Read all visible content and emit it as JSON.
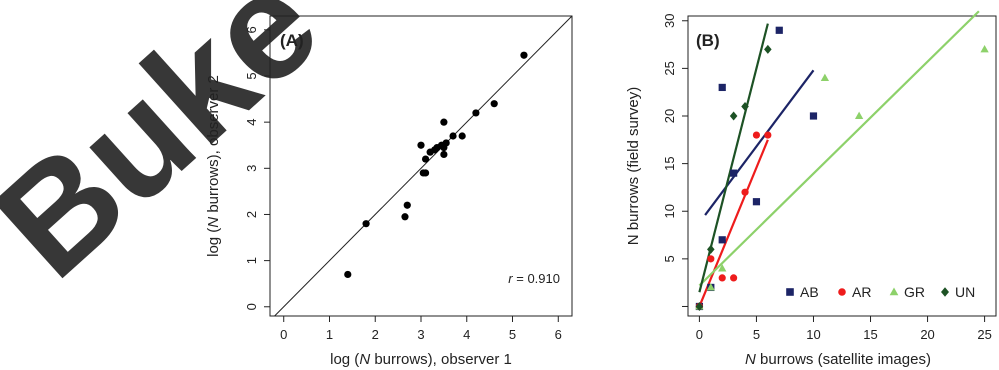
{
  "watermark": {
    "text": "Buke",
    "color": "#d8262c"
  },
  "chart_data": [
    {
      "type": "scatter",
      "panel_label": "(A)",
      "xlabel_parts": [
        "log (",
        "N",
        " burrows), observer 1"
      ],
      "ylabel_parts": [
        "log (",
        "N",
        " burrows), observer 2"
      ],
      "xlim": [
        -0.3,
        6.3
      ],
      "ylim": [
        -0.2,
        6.3
      ],
      "xticks": [
        0,
        1,
        2,
        3,
        4,
        5,
        6
      ],
      "yticks": [
        0,
        1,
        2,
        3,
        4,
        5,
        6
      ],
      "reference_line": "y = x",
      "annotation": {
        "var": "r",
        "text": " = 0.910"
      },
      "points": [
        {
          "x": 1.4,
          "y": 0.7
        },
        {
          "x": 1.8,
          "y": 1.8
        },
        {
          "x": 2.65,
          "y": 1.95
        },
        {
          "x": 2.7,
          "y": 2.2
        },
        {
          "x": 3.0,
          "y": 3.5
        },
        {
          "x": 3.05,
          "y": 2.9
        },
        {
          "x": 3.1,
          "y": 2.9
        },
        {
          "x": 3.1,
          "y": 3.2
        },
        {
          "x": 3.2,
          "y": 3.35
        },
        {
          "x": 3.3,
          "y": 3.4
        },
        {
          "x": 3.35,
          "y": 3.45
        },
        {
          "x": 3.45,
          "y": 3.5
        },
        {
          "x": 3.5,
          "y": 3.3
        },
        {
          "x": 3.5,
          "y": 3.45
        },
        {
          "x": 3.5,
          "y": 4.0
        },
        {
          "x": 3.55,
          "y": 3.55
        },
        {
          "x": 3.7,
          "y": 3.7
        },
        {
          "x": 3.9,
          "y": 3.7
        },
        {
          "x": 4.2,
          "y": 4.2
        },
        {
          "x": 4.6,
          "y": 4.4
        },
        {
          "x": 5.25,
          "y": 5.45
        }
      ]
    },
    {
      "type": "scatter",
      "panel_label": "(B)",
      "xlabel_parts": [
        "",
        "N",
        " burrows (satellite images)"
      ],
      "ylabel": "N burrows (field survey)",
      "xlim": [
        -1,
        26
      ],
      "ylim": [
        -1,
        30.5
      ],
      "xticks": [
        0,
        5,
        10,
        15,
        20,
        25
      ],
      "yticks": [
        0,
        5,
        10,
        15,
        20,
        25,
        30
      ],
      "ytick_labels": [
        "",
        "5",
        "10",
        "15",
        "20",
        "25",
        "30"
      ],
      "legend_position": "bottom-right",
      "series": [
        {
          "name": "AB",
          "color": "#1c2466",
          "marker": "square",
          "points": [
            {
              "x": 0,
              "y": 0
            },
            {
              "x": 1,
              "y": 2
            },
            {
              "x": 2,
              "y": 7
            },
            {
              "x": 2,
              "y": 23
            },
            {
              "x": 3,
              "y": 14
            },
            {
              "x": 5,
              "y": 11
            },
            {
              "x": 7,
              "y": 29
            },
            {
              "x": 10,
              "y": 20
            }
          ],
          "fit": [
            [
              0.5,
              9.6
            ],
            [
              10,
              24.8
            ]
          ]
        },
        {
          "name": "AR",
          "color": "#ee1c1c",
          "marker": "circle",
          "points": [
            {
              "x": 0,
              "y": 0
            },
            {
              "x": 1,
              "y": 5
            },
            {
              "x": 2,
              "y": 3
            },
            {
              "x": 3,
              "y": 3
            },
            {
              "x": 4,
              "y": 12
            },
            {
              "x": 5,
              "y": 18
            },
            {
              "x": 6,
              "y": 18
            }
          ],
          "fit": [
            [
              0,
              0
            ],
            [
              6,
              17.5
            ]
          ]
        },
        {
          "name": "GR",
          "color": "#8dd16a",
          "marker": "triangle",
          "points": [
            {
              "x": 0,
              "y": 0
            },
            {
              "x": 1,
              "y": 2
            },
            {
              "x": 2,
              "y": 4
            },
            {
              "x": 11,
              "y": 24
            },
            {
              "x": 14,
              "y": 20
            },
            {
              "x": 25,
              "y": 27
            }
          ],
          "fit": [
            [
              0,
              2.2
            ],
            [
              24.5,
              31
            ]
          ]
        },
        {
          "name": "UN",
          "color": "#1d5225",
          "marker": "diamond",
          "points": [
            {
              "x": 0,
              "y": 0
            },
            {
              "x": 1,
              "y": 6
            },
            {
              "x": 3,
              "y": 20
            },
            {
              "x": 4,
              "y": 21
            },
            {
              "x": 6,
              "y": 27
            }
          ],
          "fit": [
            [
              0,
              1.5
            ],
            [
              6,
              29.7
            ]
          ]
        }
      ]
    }
  ]
}
